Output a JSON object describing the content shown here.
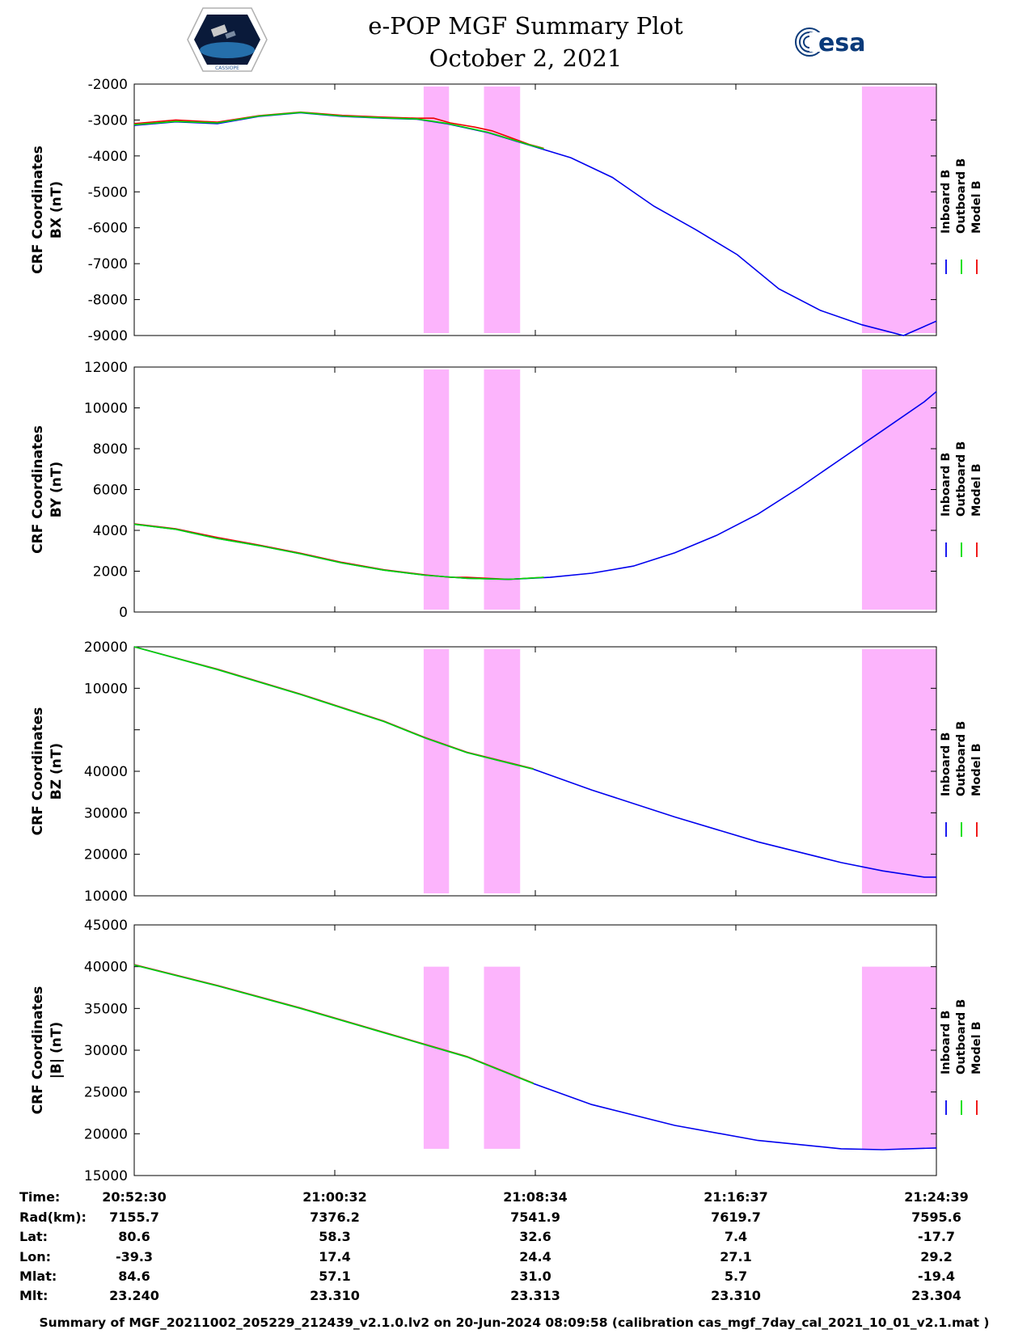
{
  "header": {
    "title": "e-POP MGF Summary Plot",
    "date": "October 2, 2021",
    "logo_left_icon": "cassiope-mission-logo",
    "logo_left_text": "CASSIOPE",
    "logo_right_icon": "esa-logo",
    "logo_right_text": "esa"
  },
  "colors": {
    "inboard": "#0000ee",
    "outboard": "#00dd00",
    "model": "#ee0000",
    "shade": "#fcb4fc"
  },
  "legend": [
    "Inboard B",
    "Outboard B",
    "Model B"
  ],
  "chart_data": [
    {
      "type": "line",
      "ylabel": [
        "CRF Coordinates",
        "BX (nT)"
      ],
      "yticks": [
        "-2000",
        "-3000",
        "-4000",
        "-5000",
        "-6000",
        "-7000",
        "-8000",
        "-9000"
      ],
      "ylim": [
        -9000,
        -2000
      ],
      "xlim": [
        0,
        1929
      ],
      "x_unit": "seconds after 20:52:30",
      "shaded_x_ranges": [
        [
          696,
          757
        ],
        [
          841,
          928
        ],
        [
          1750,
          1929
        ]
      ],
      "series": [
        {
          "name": "Inboard B",
          "points": [
            [
              0,
              -3150
            ],
            [
              100,
              -3050
            ],
            [
              200,
              -3100
            ],
            [
              300,
              -2900
            ],
            [
              400,
              -2800
            ],
            [
              500,
              -2900
            ],
            [
              600,
              -2950
            ],
            [
              680,
              -2980
            ],
            [
              750,
              -3100
            ],
            [
              850,
              -3350
            ],
            [
              950,
              -3700
            ],
            [
              1050,
              -4050
            ],
            [
              1150,
              -4600
            ],
            [
              1250,
              -5400
            ],
            [
              1350,
              -6050
            ],
            [
              1450,
              -6750
            ],
            [
              1550,
              -7700
            ],
            [
              1650,
              -8300
            ],
            [
              1750,
              -8700
            ],
            [
              1850,
              -9000
            ],
            [
              1929,
              -8600
            ]
          ]
        },
        {
          "name": "Outboard B",
          "points": [
            [
              0,
              -3130
            ],
            [
              100,
              -3040
            ],
            [
              200,
              -3080
            ],
            [
              300,
              -2890
            ],
            [
              400,
              -2790
            ],
            [
              500,
              -2890
            ],
            [
              600,
              -2940
            ],
            [
              680,
              -2970
            ],
            [
              750,
              -3090
            ],
            [
              850,
              -3340
            ],
            [
              950,
              -3690
            ],
            [
              985,
              -3800
            ]
          ]
        },
        {
          "name": "Model B",
          "points": [
            [
              0,
              -3100
            ],
            [
              100,
              -3000
            ],
            [
              200,
              -3060
            ],
            [
              300,
              -2880
            ],
            [
              400,
              -2780
            ],
            [
              500,
              -2870
            ],
            [
              600,
              -2920
            ],
            [
              680,
              -2950
            ],
            [
              720,
              -2950
            ],
            [
              760,
              -3080
            ],
            [
              820,
              -3200
            ],
            [
              860,
              -3300
            ],
            [
              950,
              -3680
            ],
            [
              985,
              -3790
            ]
          ]
        }
      ]
    },
    {
      "type": "line",
      "ylabel": [
        "CRF Coordinates",
        "BY (nT)"
      ],
      "yticks": [
        "12000",
        "10000",
        "8000",
        "6000",
        "4000",
        "2000",
        "0"
      ],
      "ylim": [
        0,
        12000
      ],
      "xlim": [
        0,
        1929
      ],
      "shaded_x_ranges": [
        [
          696,
          757
        ],
        [
          841,
          928
        ],
        [
          1750,
          1929
        ]
      ],
      "series": [
        {
          "name": "Inboard B",
          "points": [
            [
              0,
              4300
            ],
            [
              100,
              4050
            ],
            [
              200,
              3600
            ],
            [
              300,
              3250
            ],
            [
              400,
              2850
            ],
            [
              500,
              2400
            ],
            [
              600,
              2050
            ],
            [
              700,
              1800
            ],
            [
              800,
              1650
            ],
            [
              900,
              1600
            ],
            [
              1000,
              1700
            ],
            [
              1100,
              1900
            ],
            [
              1200,
              2250
            ],
            [
              1300,
              2900
            ],
            [
              1400,
              3750
            ],
            [
              1500,
              4800
            ],
            [
              1600,
              6100
            ],
            [
              1700,
              7500
            ],
            [
              1800,
              8900
            ],
            [
              1900,
              10300
            ],
            [
              1929,
              10800
            ]
          ]
        },
        {
          "name": "Outboard B",
          "points": [
            [
              0,
              4300
            ],
            [
              100,
              4050
            ],
            [
              200,
              3600
            ],
            [
              300,
              3250
            ],
            [
              400,
              2850
            ],
            [
              500,
              2400
            ],
            [
              600,
              2050
            ],
            [
              700,
              1800
            ],
            [
              800,
              1650
            ],
            [
              900,
              1600
            ],
            [
              985,
              1700
            ]
          ]
        },
        {
          "name": "Model B",
          "points": [
            [
              0,
              4320
            ],
            [
              100,
              4080
            ],
            [
              200,
              3650
            ],
            [
              300,
              3280
            ],
            [
              400,
              2880
            ],
            [
              500,
              2430
            ],
            [
              600,
              2070
            ],
            [
              700,
              1820
            ],
            [
              760,
              1700
            ],
            [
              800,
              1700
            ],
            [
              850,
              1650
            ],
            [
              900,
              1600
            ],
            [
              985,
              1700
            ]
          ]
        }
      ]
    },
    {
      "type": "line",
      "ylabel": [
        "CRF Coordinates",
        "BZ (nT)"
      ],
      "yticks": [
        "20000",
        "10000",
        "",
        "40000",
        "30000",
        "20000",
        "10000"
      ],
      "ylim": [
        0,
        6
      ],
      "xlim": [
        0,
        1929
      ],
      "note": "values expressed in tick-index units as drawn (axis tick labels are non-monotonic in the original)",
      "shaded_x_ranges": [
        [
          696,
          757
        ],
        [
          841,
          928
        ],
        [
          1750,
          1929
        ]
      ],
      "series": [
        {
          "name": "Inboard B",
          "points": [
            [
              0,
              6
            ],
            [
              200,
              5.45
            ],
            [
              400,
              4.85
            ],
            [
              600,
              4.2
            ],
            [
              700,
              3.8
            ],
            [
              800,
              3.45
            ],
            [
              960,
              3.05
            ],
            [
              1100,
              2.55
            ],
            [
              1300,
              1.9
            ],
            [
              1500,
              1.3
            ],
            [
              1700,
              0.8
            ],
            [
              1800,
              0.6
            ],
            [
              1900,
              0.45
            ],
            [
              1929,
              0.45
            ]
          ]
        },
        {
          "name": "Outboard B",
          "points": [
            [
              0,
              6
            ],
            [
              200,
              5.45
            ],
            [
              400,
              4.85
            ],
            [
              600,
              4.2
            ],
            [
              700,
              3.8
            ],
            [
              800,
              3.45
            ],
            [
              960,
              3.05
            ]
          ]
        },
        {
          "name": "Model B",
          "points": [
            [
              0,
              6.0
            ],
            [
              200,
              5.46
            ],
            [
              400,
              4.86
            ],
            [
              600,
              4.21
            ],
            [
              700,
              3.81
            ],
            [
              800,
              3.46
            ],
            [
              960,
              3.06
            ]
          ]
        }
      ]
    },
    {
      "type": "line",
      "ylabel": [
        "CRF Coordinates",
        "|B| (nT)"
      ],
      "yticks": [
        "45000",
        "40000",
        "35000",
        "30000",
        "25000",
        "20000",
        "15000"
      ],
      "ylim": [
        15000,
        45000
      ],
      "xlim": [
        0,
        1929
      ],
      "shaded_x_ranges": [
        [
          696,
          757
        ],
        [
          841,
          928
        ],
        [
          1750,
          1929
        ]
      ],
      "shade_ylim": [
        18200,
        40000
      ],
      "series": [
        {
          "name": "Inboard B",
          "points": [
            [
              0,
              40200
            ],
            [
              200,
              37700
            ],
            [
              400,
              35000
            ],
            [
              600,
              32100
            ],
            [
              800,
              29200
            ],
            [
              960,
              26000
            ],
            [
              1100,
              23500
            ],
            [
              1300,
              21000
            ],
            [
              1500,
              19200
            ],
            [
              1700,
              18200
            ],
            [
              1800,
              18100
            ],
            [
              1929,
              18300
            ]
          ]
        },
        {
          "name": "Outboard B",
          "points": [
            [
              0,
              40200
            ],
            [
              200,
              37700
            ],
            [
              400,
              35000
            ],
            [
              600,
              32100
            ],
            [
              800,
              29200
            ],
            [
              960,
              26000
            ]
          ]
        },
        {
          "name": "Model B",
          "points": [
            [
              0,
              40250
            ],
            [
              200,
              37750
            ],
            [
              400,
              35050
            ],
            [
              600,
              32150
            ],
            [
              800,
              29250
            ],
            [
              960,
              26050
            ]
          ]
        }
      ]
    }
  ],
  "ephemeris": {
    "row_labels": [
      "Time:",
      "Rad(km):",
      "Lat:",
      "Lon:",
      "Mlat:",
      "Mlt:"
    ],
    "columns": [
      [
        "20:52:30",
        "7155.7",
        "80.6",
        "-39.3",
        "84.6",
        "23.240"
      ],
      [
        "21:00:32",
        "7376.2",
        "58.3",
        "17.4",
        "57.1",
        "23.310"
      ],
      [
        "21:08:34",
        "7541.9",
        "32.6",
        "24.4",
        "31.0",
        "23.313"
      ],
      [
        "21:16:37",
        "7619.7",
        "7.4",
        "27.1",
        "5.7",
        "23.310"
      ],
      [
        "21:24:39",
        "7595.6",
        "-17.7",
        "29.2",
        "-19.4",
        "23.304"
      ]
    ]
  },
  "footer": "Summary of MGF_20211002_205229_212439_v2.1.0.lv2 on 20-Jun-2024 08:09:58 (calibration cas_mgf_7day_cal_2021_10_01_v2.1.mat )"
}
